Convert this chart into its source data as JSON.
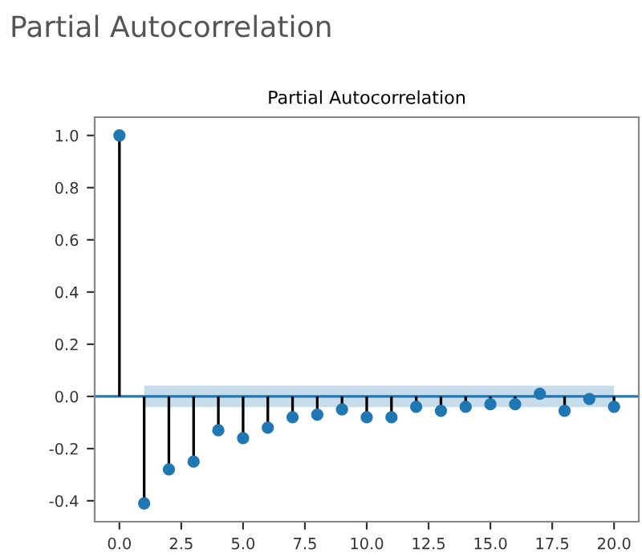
{
  "chart_data": {
    "type": "lollipop",
    "title": "Partial Autocorrelation",
    "subtitle": "Partial Autocorrelation",
    "x": [
      0,
      1,
      2,
      3,
      4,
      5,
      6,
      7,
      8,
      9,
      10,
      11,
      12,
      13,
      14,
      15,
      16,
      17,
      18,
      19,
      20
    ],
    "series": [
      {
        "color": "#1f77b4",
        "values": [
          1.0,
          -0.41,
          -0.28,
          -0.25,
          -0.13,
          -0.16,
          -0.12,
          -0.08,
          -0.07,
          -0.05,
          -0.08,
          -0.08,
          -0.04,
          -0.055,
          -0.04,
          -0.03,
          -0.03,
          0.01,
          -0.055,
          -0.01,
          -0.04
        ]
      }
    ],
    "marker": "circle",
    "ref_lines": [
      {
        "axis": "y",
        "value": 0,
        "color": "#1f77b4"
      }
    ],
    "bands": [
      {
        "axis": "y",
        "from": -0.041,
        "to": 0.041,
        "color": "#1f77b4"
      }
    ],
    "xlim": [
      -1,
      21
    ],
    "ylim": [
      -0.48,
      1.07
    ],
    "xticks": [
      {
        "value": 0,
        "label": "0.0"
      },
      2.5,
      {
        "value": 5,
        "label": "5.0"
      },
      7.5,
      {
        "value": 10,
        "label": "10.0"
      },
      12.5,
      {
        "value": 15,
        "label": "15.0"
      },
      17.5,
      {
        "value": 20,
        "label": "20.0"
      }
    ],
    "yticks": [
      -0.4,
      -0.2,
      {
        "value": 0,
        "label": "0.0"
      },
      0.2,
      0.4,
      0.6,
      0.8,
      {
        "value": 1,
        "label": "1.0"
      }
    ],
    "grid": false
  }
}
